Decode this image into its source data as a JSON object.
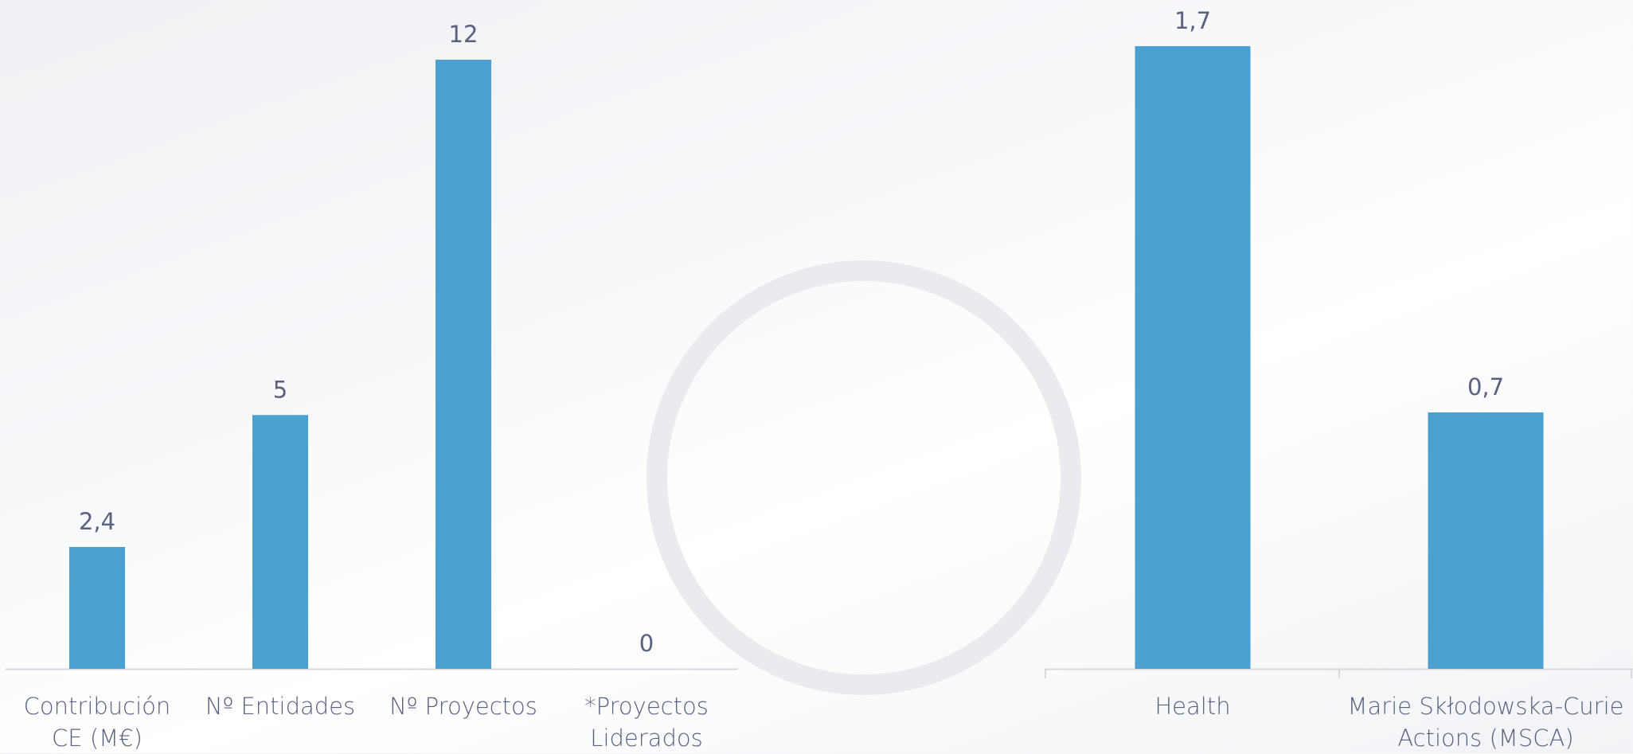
{
  "chart_data": [
    {
      "type": "bar",
      "categories": [
        "Contribución CE (M€)",
        "Nº Entidades",
        "Nº Proyectos",
        "*Proyectos Liderados"
      ],
      "values": [
        2.4,
        5,
        12,
        0
      ],
      "value_labels": [
        "2,4",
        "5",
        "12",
        "0"
      ],
      "color": "#4aa1cf",
      "ylim": [
        0,
        12
      ]
    },
    {
      "type": "bar",
      "categories": [
        "Health",
        "Marie Skłodowska-Curie Actions (MSCA)"
      ],
      "values": [
        1.7,
        0.7
      ],
      "value_labels": [
        "1,7",
        "0,7"
      ],
      "color": "#4aa1cf",
      "ylim": [
        0,
        1.7
      ]
    }
  ]
}
